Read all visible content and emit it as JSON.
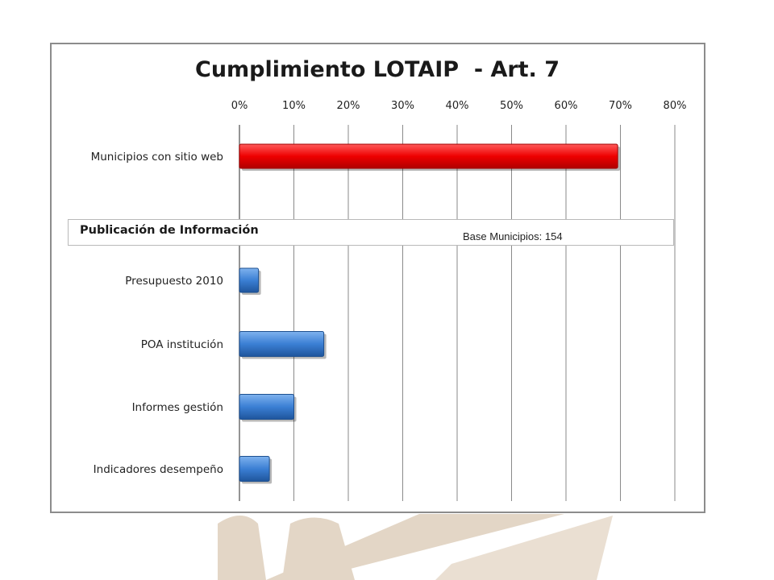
{
  "chart_data": {
    "type": "bar",
    "orientation": "horizontal",
    "title": "Cumplimiento LOTAIP  - Art. 7",
    "xlim": [
      0,
      80
    ],
    "x_ticks": [
      "0%",
      "10%",
      "20%",
      "30%",
      "40%",
      "50%",
      "60%",
      "70%",
      "80%"
    ],
    "grid": "vertical",
    "categories": [
      "Municipios con sitio  web",
      "Presupuesto 2010",
      "POA institución",
      "Informes gestión",
      "Indicadores desempeño"
    ],
    "values": [
      69.5,
      3.5,
      15.5,
      10,
      5.5
    ],
    "colors": [
      "#e00000",
      "#3b7fd4",
      "#3b7fd4",
      "#3b7fd4",
      "#3b7fd4"
    ],
    "section_label": "Publicación de Información",
    "note": "Base Municipios: 154"
  }
}
